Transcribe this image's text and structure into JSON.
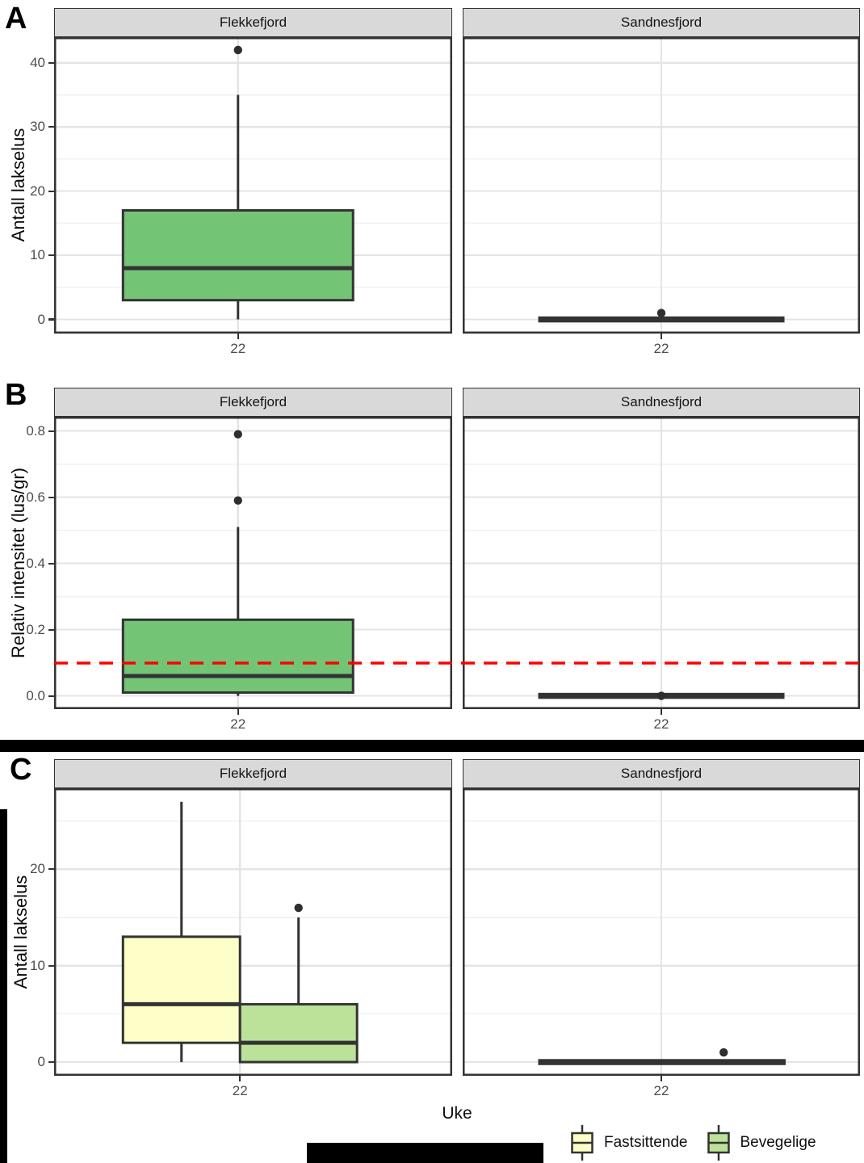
{
  "chart_data": {
    "type": "boxplot",
    "panels": [
      {
        "type": "boxplot",
        "letter": "A",
        "ylabel": "Antall lakselus",
        "xlabel": "",
        "facets": [
          "Flekkefjord",
          "Sandnesfjord"
        ],
        "x_tick_label": "22",
        "tick_x": [
          0.462,
          0.5
        ],
        "ylim": [
          -2.2,
          44.0
        ],
        "ytick_values": [
          0,
          10,
          20,
          30,
          40
        ],
        "ytick_labels": [
          "0",
          "10",
          "20",
          "30",
          "40"
        ],
        "ytick_minor": [
          5,
          15,
          25,
          35
        ],
        "grid": true,
        "boxes": [
          {
            "facet": 0,
            "group": "Lakselus",
            "fill": "#74C476",
            "center": 0.462,
            "width": 0.578,
            "whisker_low": 0,
            "q1": 3,
            "median": 8,
            "q3": 17,
            "whisker_high": 35,
            "outliers": [
              42
            ]
          },
          {
            "facet": 1,
            "group": "Lakselus",
            "fill": "#74C476",
            "center": 0.5,
            "width": 0.62,
            "whisker_low": 0,
            "q1": 0,
            "median": 0,
            "q3": 0,
            "whisker_high": 0,
            "outliers": [
              1
            ]
          }
        ]
      },
      {
        "type": "boxplot",
        "letter": "B",
        "ylabel": "Relativ intensitet (lus/gr)",
        "xlabel": "",
        "facets": [
          "Flekkefjord",
          "Sandnesfjord"
        ],
        "x_tick_label": "22",
        "tick_x": [
          0.462,
          0.5
        ],
        "ylim": [
          -0.04,
          0.843
        ],
        "ytick_values": [
          0.0,
          0.2,
          0.4,
          0.6,
          0.8
        ],
        "ytick_labels": [
          "0.0",
          "0.2",
          "0.4",
          "0.6",
          "0.8"
        ],
        "ytick_minor": [
          0.1,
          0.3,
          0.5,
          0.7
        ],
        "grid": true,
        "refline": {
          "value": 0.1,
          "color": "#FF0000",
          "style": "dashed"
        },
        "boxes": [
          {
            "facet": 0,
            "group": "Lakselus",
            "fill": "#74C476",
            "center": 0.462,
            "width": 0.578,
            "whisker_low": 0,
            "q1": 0.01,
            "median": 0.06,
            "q3": 0.23,
            "whisker_high": 0.51,
            "outliers": [
              0.79,
              0.59
            ]
          },
          {
            "facet": 1,
            "group": "Lakselus",
            "fill": "#74C476",
            "center": 0.5,
            "width": 0.62,
            "whisker_low": 0,
            "q1": 0,
            "median": 0,
            "q3": 0,
            "whisker_high": 0,
            "outliers": [
              0
            ]
          }
        ]
      },
      {
        "type": "boxplot",
        "letter": "C",
        "ylabel": "Antall lakselus",
        "xlabel": "Uke",
        "facets": [
          "Flekkefjord",
          "Sandnesfjord"
        ],
        "x_tick_label": "22",
        "tick_x": [
          0.467,
          0.5
        ],
        "ylim": [
          -1.42,
          28.4
        ],
        "ytick_values": [
          0,
          10,
          20
        ],
        "ytick_labels": [
          "0",
          "10",
          "20"
        ],
        "ytick_minor": [
          5,
          15,
          25
        ],
        "grid": true,
        "boxes": [
          {
            "facet": 0,
            "group": "Fastsittende",
            "fill": "#FEFFC8",
            "center": 0.32,
            "width": 0.294,
            "whisker_low": 0,
            "q1": 2,
            "median": 6,
            "q3": 13,
            "whisker_high": 27,
            "outliers": []
          },
          {
            "facet": 0,
            "group": "Bevegelige",
            "fill": "#BCE29A",
            "center": 0.614,
            "width": 0.294,
            "whisker_low": 0,
            "q1": 0,
            "median": 2,
            "q3": 6,
            "whisker_high": 15,
            "outliers": [
              16
            ]
          },
          {
            "facet": 1,
            "group": "Fastsittende",
            "fill": "#FEFFC8",
            "center": 0.346,
            "width": 0.312,
            "whisker_low": 0,
            "q1": 0,
            "median": 0,
            "q3": 0,
            "whisker_high": 0,
            "outliers": []
          },
          {
            "facet": 1,
            "group": "Bevegelige",
            "fill": "#BCE29A",
            "center": 0.657,
            "width": 0.312,
            "whisker_low": 0,
            "q1": 0,
            "median": 0,
            "q3": 0,
            "whisker_high": 0,
            "outliers": [
              1
            ]
          }
        ]
      }
    ],
    "legend": {
      "items": [
        {
          "label": "Fastsittende",
          "fill": "#FEFFC8"
        },
        {
          "label": "Bevegelige",
          "fill": "#BCE29A"
        }
      ]
    },
    "colors": {
      "box_stroke": "#333333",
      "panel_border": "#333333",
      "strip_background": "#D9D9D9",
      "grid_major": "#E4E4E4",
      "grid_minor": "#F2F2F2",
      "tick_text": "#4D4D4D",
      "outlier": "#2E2E2E",
      "refline": "#FF0000"
    }
  }
}
